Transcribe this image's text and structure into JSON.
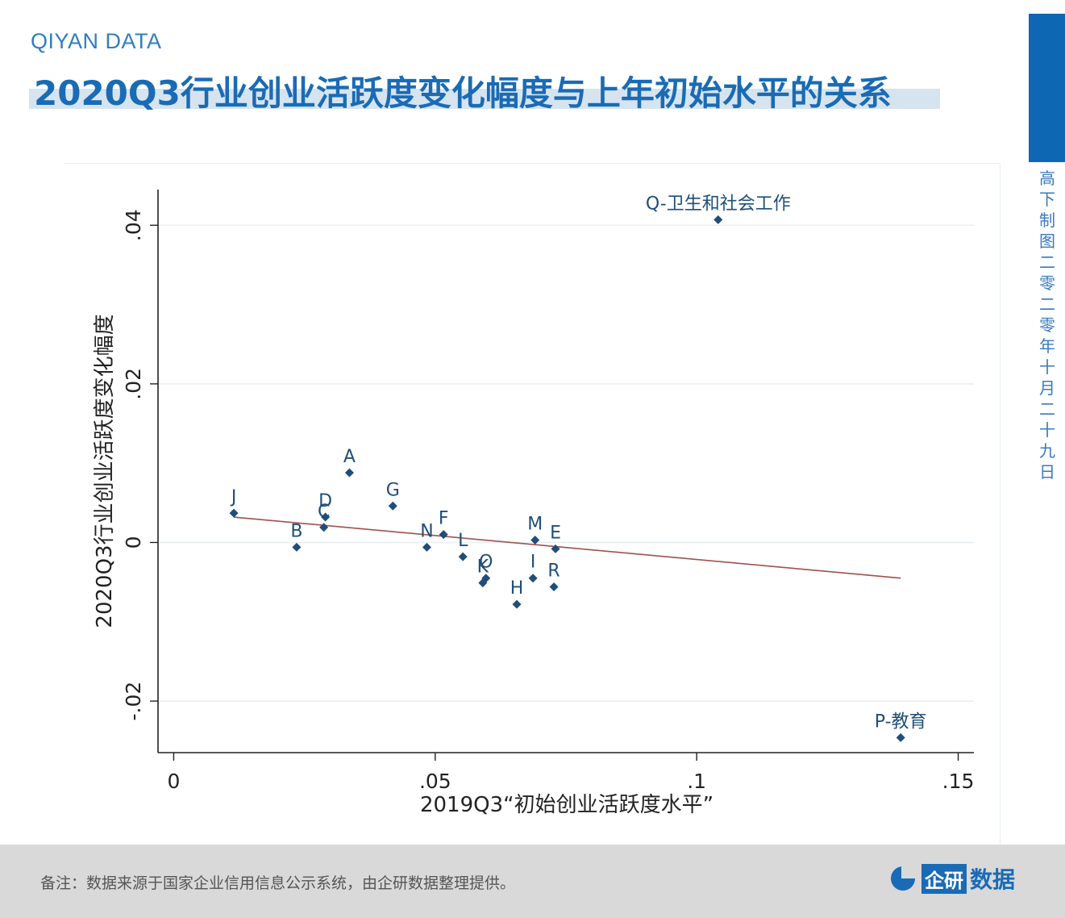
{
  "header": {
    "brand": "QIYAN DATA",
    "title": "2020Q3行业创业活跃度变化幅度与上年初始水平的关系"
  },
  "side": {
    "date_vertical": "高下制图 二零二零年十月二十九日"
  },
  "footer": {
    "note": "备注：数据来源于国家企业信用信息公示系统，由企研数据整理提供。",
    "logo_box": "企研",
    "logo_text": "数据"
  },
  "colors": {
    "accent": "#1a6bb5",
    "marker": "#1f4e79",
    "fit_line": "#a0504f"
  },
  "chart_data": {
    "type": "scatter",
    "xlabel": "2019Q3“初始创业活跃度水平”",
    "ylabel": "2020Q3行业创业活跃度变化幅度",
    "xlim": [
      -0.003,
      0.153
    ],
    "ylim": [
      -0.0265,
      0.0445
    ],
    "xticks": [
      0,
      0.05,
      0.1,
      0.15
    ],
    "xtick_labels": [
      "0",
      ".05",
      ".1",
      ".15"
    ],
    "yticks": [
      -0.02,
      0,
      0.02,
      0.04
    ],
    "ytick_labels": [
      "-.02",
      "0",
      ".02",
      ".04"
    ],
    "grid": "horizontal",
    "points": [
      {
        "label": "J",
        "x": 0.0115,
        "y": 0.0037
      },
      {
        "label": "B",
        "x": 0.0235,
        "y": -0.0006
      },
      {
        "label": "D",
        "x": 0.029,
        "y": 0.0032
      },
      {
        "label": "C",
        "x": 0.0287,
        "y": 0.0019
      },
      {
        "label": "A",
        "x": 0.0336,
        "y": 0.0088
      },
      {
        "label": "G",
        "x": 0.0419,
        "y": 0.0046
      },
      {
        "label": "N",
        "x": 0.0484,
        "y": -0.0006
      },
      {
        "label": "F",
        "x": 0.0516,
        "y": 0.001
      },
      {
        "label": "L",
        "x": 0.0553,
        "y": -0.0018
      },
      {
        "label": "K",
        "x": 0.0591,
        "y": -0.0051
      },
      {
        "label": "O",
        "x": 0.0597,
        "y": -0.0045
      },
      {
        "label": "H",
        "x": 0.0656,
        "y": -0.0078
      },
      {
        "label": "M",
        "x": 0.0691,
        "y": 0.0003
      },
      {
        "label": "I",
        "x": 0.0687,
        "y": -0.0045
      },
      {
        "label": "E",
        "x": 0.073,
        "y": -0.0008
      },
      {
        "label": "R",
        "x": 0.0727,
        "y": -0.0056
      },
      {
        "label": "Q-卫生和社会工作",
        "x": 0.1041,
        "y": 0.0407
      },
      {
        "label": "P-教育",
        "x": 0.139,
        "y": -0.0246
      }
    ],
    "fit_line": {
      "x": [
        0.0115,
        0.139
      ],
      "y": [
        0.0032,
        -0.0045
      ]
    }
  }
}
